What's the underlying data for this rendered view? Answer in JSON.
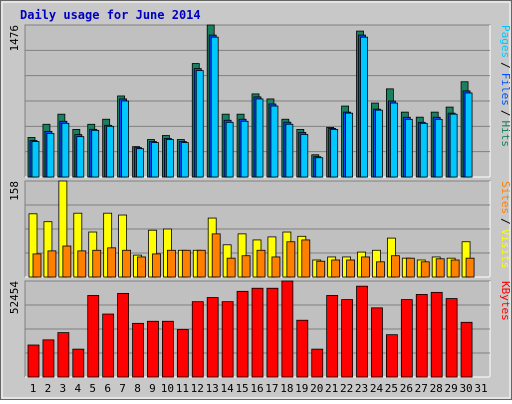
{
  "chart_data": [
    {
      "type": "bar",
      "title": "Daily usage for June 2014",
      "legend_separator": "/",
      "ylim": [
        0,
        1476
      ],
      "yticks": [
        1476
      ],
      "series": [
        {
          "name": "Pages",
          "color": "#00c8ff",
          "values": [
            344,
            423,
            521,
            392,
            453,
            492,
            738,
            275,
            334,
            364,
            334,
            1033,
            1358,
            531,
            541,
            758,
            689,
            512,
            413,
            187,
            462,
            620,
            1358,
            649,
            718,
            560,
            521,
            560,
            610,
            816,
            0
          ]
        },
        {
          "name": "Files",
          "color": "#0050ff",
          "values": [
            354,
            443,
            541,
            412,
            463,
            502,
            758,
            285,
            344,
            374,
            344,
            1053,
            1378,
            551,
            561,
            778,
            709,
            532,
            433,
            197,
            472,
            630,
            1378,
            659,
            738,
            580,
            531,
            580,
            620,
            836,
            0
          ]
        },
        {
          "name": "Hits",
          "color": "#1a8060",
          "values": [
            384,
            512,
            610,
            462,
            512,
            561,
            787,
            295,
            364,
            403,
            364,
            1102,
            1476,
            610,
            610,
            807,
            758,
            561,
            462,
            216,
            482,
            689,
            1417,
            718,
            856,
            630,
            581,
            630,
            679,
            925,
            0
          ]
        }
      ]
    },
    {
      "type": "bar",
      "legend_separator": "/",
      "ylim": [
        0,
        158
      ],
      "yticks": [
        158
      ],
      "series": [
        {
          "name": "Sites",
          "color": "#ff8000",
          "values": [
            38,
            43,
            51,
            43,
            44,
            48,
            44,
            33,
            38,
            44,
            44,
            44,
            71,
            31,
            35,
            44,
            33,
            58,
            61,
            26,
            28,
            28,
            33,
            25,
            35,
            31,
            25,
            30,
            28,
            31,
            0
          ]
        },
        {
          "name": "Visits",
          "color": "#ffff00",
          "values": [
            104,
            91,
            158,
            105,
            74,
            105,
            102,
            36,
            77,
            79,
            44,
            44,
            97,
            53,
            71,
            61,
            66,
            74,
            67,
            28,
            33,
            33,
            41,
            44,
            64,
            31,
            28,
            33,
            31,
            58,
            0
          ]
        }
      ]
    },
    {
      "type": "bar",
      "ylim": [
        0,
        52454
      ],
      "yticks": [
        52454
      ],
      "categories": [
        "1",
        "2",
        "3",
        "4",
        "5",
        "6",
        "7",
        "8",
        "9",
        "10",
        "11",
        "12",
        "13",
        "14",
        "15",
        "16",
        "17",
        "18",
        "19",
        "20",
        "21",
        "22",
        "23",
        "24",
        "25",
        "26",
        "27",
        "28",
        "29",
        "30",
        "31"
      ],
      "series": [
        {
          "name": "KBytes",
          "color": "#ff0000",
          "values": [
            17484,
            20304,
            24252,
            15228,
            44556,
            34404,
            45684,
            29328,
            30456,
            30456,
            25944,
            41172,
            43428,
            41172,
            46812,
            48504,
            48504,
            52454,
            31020,
            15228,
            44556,
            42300,
            49632,
            37788,
            23124,
            42300,
            45120,
            46248,
            42864,
            29892,
            0
          ]
        }
      ]
    }
  ]
}
